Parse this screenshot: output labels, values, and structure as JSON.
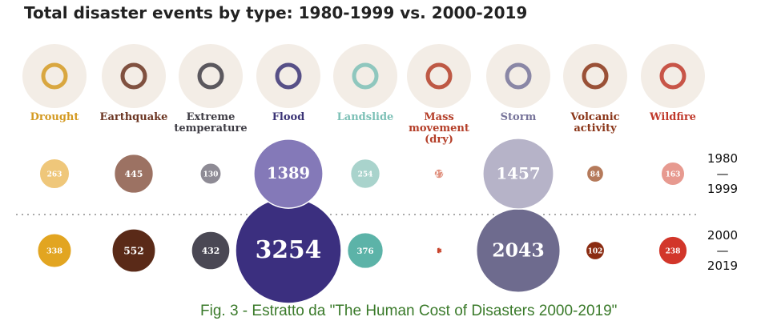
{
  "chart_data": {
    "type": "bubble",
    "title": "Total disaster events by type: 1980-1999 vs. 2000-2019",
    "categories": [
      "Drought",
      "Earthquake",
      "Extreme temperature",
      "Flood",
      "Landslide",
      "Mass movement (dry)",
      "Storm",
      "Volcanic activity",
      "Wildfire"
    ],
    "category_colors": [
      "#d49a22",
      "#6b3522",
      "#3f3d45",
      "#3b3476",
      "#7cc0b6",
      "#b43e28",
      "#77749a",
      "#8a3518",
      "#c0392b"
    ],
    "series": [
      {
        "name": "1980\n—\n1999",
        "values": [
          263,
          445,
          130,
          1389,
          254,
          27,
          1457,
          84,
          163
        ],
        "colors": [
          "#efc77a",
          "#9c7263",
          "#8e8b95",
          "#8479b8",
          "#a9d3cc",
          "#e0917f",
          "#b6b3c8",
          "#b57a5b",
          "#e79a90"
        ]
      },
      {
        "name": "2000\n—\n2019",
        "values": [
          338,
          552,
          432,
          3254,
          376,
          13,
          2043,
          102,
          238
        ],
        "colors": [
          "#e2a521",
          "#5a2a18",
          "#4a4854",
          "#3b2f7f",
          "#5cb3a8",
          "#c8432b",
          "#6e6b8e",
          "#8b2c12",
          "#d2362a"
        ]
      }
    ],
    "caption": "Fig. 3 - Estratto da  \"The Human Cost of Disasters 2000-2019\""
  }
}
